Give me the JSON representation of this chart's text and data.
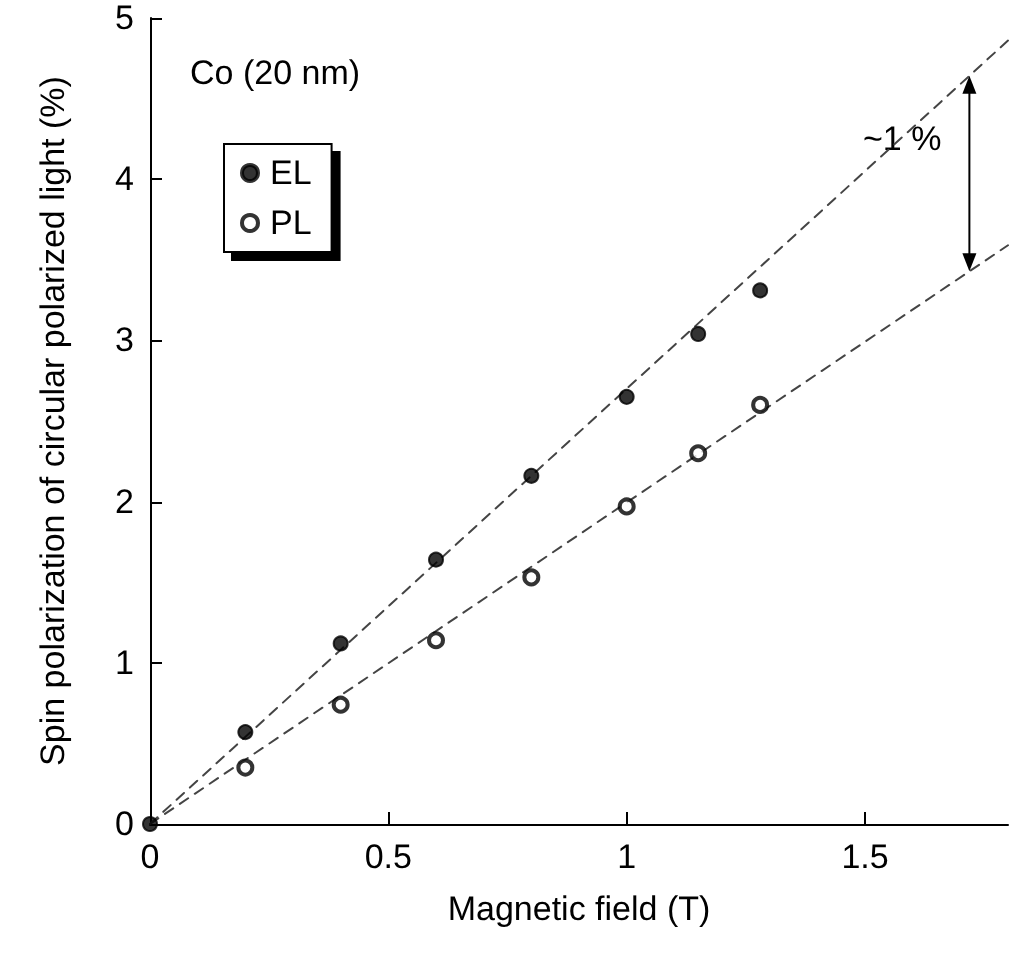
{
  "chart_data": {
    "type": "scatter",
    "xlabel": "Magnetic field (T)",
    "ylabel": "Spin polarization of circular polarized light (%)",
    "xlim": [
      0,
      1.8
    ],
    "xticks": [
      0,
      0.5,
      1,
      1.5
    ],
    "ylim": [
      0,
      5
    ],
    "yticks": [
      0,
      1,
      2,
      3,
      4,
      5
    ],
    "grid": false,
    "legend": "top left",
    "annotations": [
      "Co (20 nm)",
      "~1 %"
    ],
    "series": [
      {
        "name": "EL",
        "color": "#000000",
        "marker": "circle",
        "x": [
          0,
          0.2,
          0.4,
          0.6,
          0.8,
          1.0,
          1.15,
          1.28
        ],
        "values": [
          0,
          0.57,
          1.12,
          1.64,
          2.16,
          2.65,
          3.04,
          3.31
        ]
      },
      {
        "name": "PL",
        "color": "#000000",
        "marker": "open_circle",
        "x": [
          0.2,
          0.4,
          0.6,
          0.8,
          1.0,
          1.15,
          1.28
        ],
        "values": [
          0.35,
          0.74,
          1.14,
          1.53,
          1.97,
          2.3,
          2.6
        ]
      },
      {
        "type": "line",
        "color": "#444444",
        "line_style": "dashed",
        "marker": "none",
        "x": [
          0,
          1.8
        ],
        "values": [
          0,
          4.86
        ]
      },
      {
        "type": "line",
        "color": "#444444",
        "line_style": "dashed",
        "marker": "none",
        "x": [
          0,
          1.8
        ],
        "values": [
          0,
          3.59
        ]
      }
    ]
  }
}
